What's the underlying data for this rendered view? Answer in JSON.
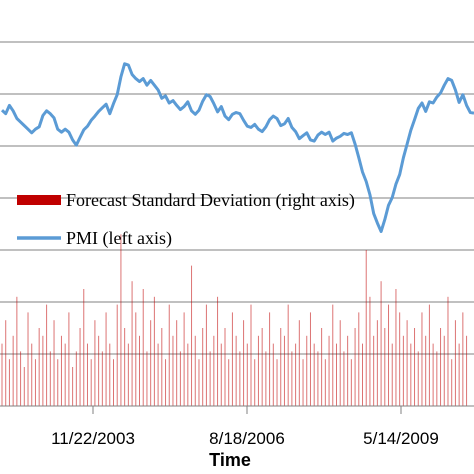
{
  "chart_data": {
    "type": "line",
    "xlabel": "Time",
    "x_tick_labels": [
      "11/22/2003",
      "8/18/2006",
      "5/14/2009"
    ],
    "grid": true,
    "legend_position": "middle-left",
    "colors": {
      "pmi": "#5b9bd5",
      "forecast_sd": "#c00000"
    },
    "series": [
      {
        "name": "Forecast Standard Deviation (right axis)",
        "kind": "bar",
        "axis": "right",
        "x_start": "2001-01",
        "x_step": "1 month",
        "values": [
          0.8,
          1.1,
          0.6,
          0.9,
          1.4,
          0.7,
          0.5,
          1.2,
          0.8,
          0.6,
          1.0,
          0.9,
          1.3,
          0.7,
          1.1,
          0.6,
          0.9,
          0.8,
          1.2,
          0.5,
          0.7,
          1.0,
          1.5,
          0.8,
          0.6,
          1.1,
          0.9,
          0.7,
          1.2,
          0.8,
          0.6,
          1.3,
          2.2,
          1.0,
          0.8,
          1.6,
          1.2,
          0.9,
          1.5,
          0.7,
          1.1,
          1.4,
          0.8,
          1.0,
          0.6,
          1.3,
          0.9,
          1.1,
          0.7,
          1.2,
          0.8,
          1.8,
          0.9,
          0.6,
          1.0,
          1.3,
          0.7,
          0.9,
          1.4,
          0.8,
          1.0,
          0.6,
          1.2,
          0.9,
          0.7,
          1.1,
          0.8,
          1.3,
          0.6,
          0.9,
          1.0,
          0.7,
          1.2,
          0.8,
          0.6,
          1.0,
          0.9,
          1.3,
          0.7,
          0.8,
          1.1,
          0.6,
          0.9,
          1.2,
          0.8,
          0.7,
          1.0,
          0.6,
          0.9,
          1.3,
          0.8,
          1.1,
          0.7,
          0.9,
          0.6,
          1.0,
          1.2,
          0.8,
          2.0,
          1.4,
          0.9,
          1.1,
          1.6,
          1.0,
          1.3,
          0.8,
          1.5,
          1.2,
          0.9,
          1.1,
          0.8,
          1.0,
          0.7,
          1.2,
          0.9,
          1.3,
          0.8,
          0.7,
          1.0,
          0.9,
          1.4,
          0.6,
          1.1,
          0.8,
          1.2,
          0.9
        ]
      },
      {
        "name": "PMI (left axis)",
        "kind": "line",
        "axis": "left",
        "x_start": "2001-01",
        "x_step": "1 month",
        "values": [
          56.2,
          55.6,
          57.0,
          56.1,
          54.8,
          54.2,
          53.6,
          53.0,
          52.4,
          53.0,
          53.4,
          55.3,
          56.1,
          55.6,
          54.9,
          53.0,
          52.5,
          53.0,
          52.5,
          51.2,
          50.3,
          51.6,
          52.9,
          53.5,
          54.5,
          55.2,
          56.0,
          56.6,
          57.2,
          55.6,
          57.3,
          58.8,
          61.8,
          64.0,
          63.8,
          62.2,
          61.5,
          61.0,
          61.5,
          60.4,
          61.2,
          60.4,
          59.6,
          58.2,
          58.6,
          57.4,
          57.8,
          57.0,
          56.3,
          56.8,
          57.6,
          56.1,
          55.5,
          56.2,
          57.7,
          58.8,
          58.5,
          57.3,
          55.9,
          56.8,
          55.2,
          54.6,
          55.5,
          55.8,
          55.6,
          54.5,
          53.5,
          53.3,
          53.8,
          53.0,
          52.6,
          53.4,
          54.6,
          55.2,
          54.8,
          53.6,
          53.9,
          54.8,
          53.3,
          52.6,
          51.4,
          51.9,
          52.4,
          51.2,
          51.0,
          52.0,
          52.5,
          52.1,
          52.5,
          51.0,
          51.5,
          51.8,
          52.3,
          52.1,
          52.4,
          50.5,
          48.2,
          45.8,
          44.2,
          42.0,
          38.8,
          37.2,
          35.8,
          37.8,
          40.2,
          41.5,
          43.8,
          45.4,
          48.2,
          50.5,
          52.8,
          54.6,
          56.5,
          57.4,
          56.0,
          57.6,
          57.4,
          58.4,
          59.1,
          60.4,
          61.5,
          61.2,
          59.6,
          57.5,
          58.8,
          57.0,
          55.8,
          55.7
        ]
      }
    ]
  }
}
